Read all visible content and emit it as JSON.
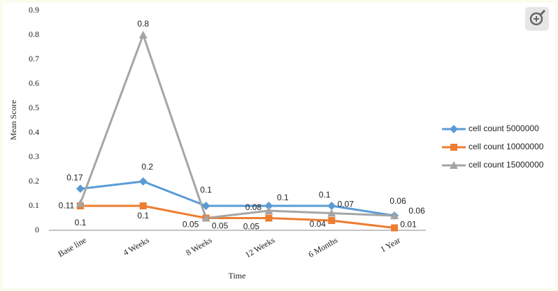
{
  "chart_data": {
    "type": "line",
    "x_label": "Time",
    "y_label": "Mean Score",
    "categories": [
      "Base line",
      "4 Weeks",
      "8 Weeks",
      "12 Weeks",
      "6 Months",
      "1 Year"
    ],
    "series": [
      {
        "name": "cell count 5000000",
        "color": "#5b9bd5",
        "marker": "diamond",
        "values": [
          0.17,
          0.2,
          0.1,
          0.1,
          0.1,
          0.06
        ]
      },
      {
        "name": "cell count 10000000",
        "color": "#ed7d31",
        "marker": "square",
        "values": [
          0.1,
          0.1,
          0.05,
          0.05,
          0.04,
          0.01
        ]
      },
      {
        "name": "cell count 15000000",
        "color": "#a5a5a5",
        "marker": "triangle",
        "values": [
          0.11,
          0.8,
          0.05,
          0.08,
          0.07,
          0.06
        ]
      }
    ],
    "ylim": [
      0,
      0.9
    ],
    "yticks": [
      0,
      0.1,
      0.2,
      0.3,
      0.4,
      0.5,
      0.6,
      0.7,
      0.8,
      0.9
    ],
    "grid": false,
    "legend": "right",
    "data_labels": true
  }
}
